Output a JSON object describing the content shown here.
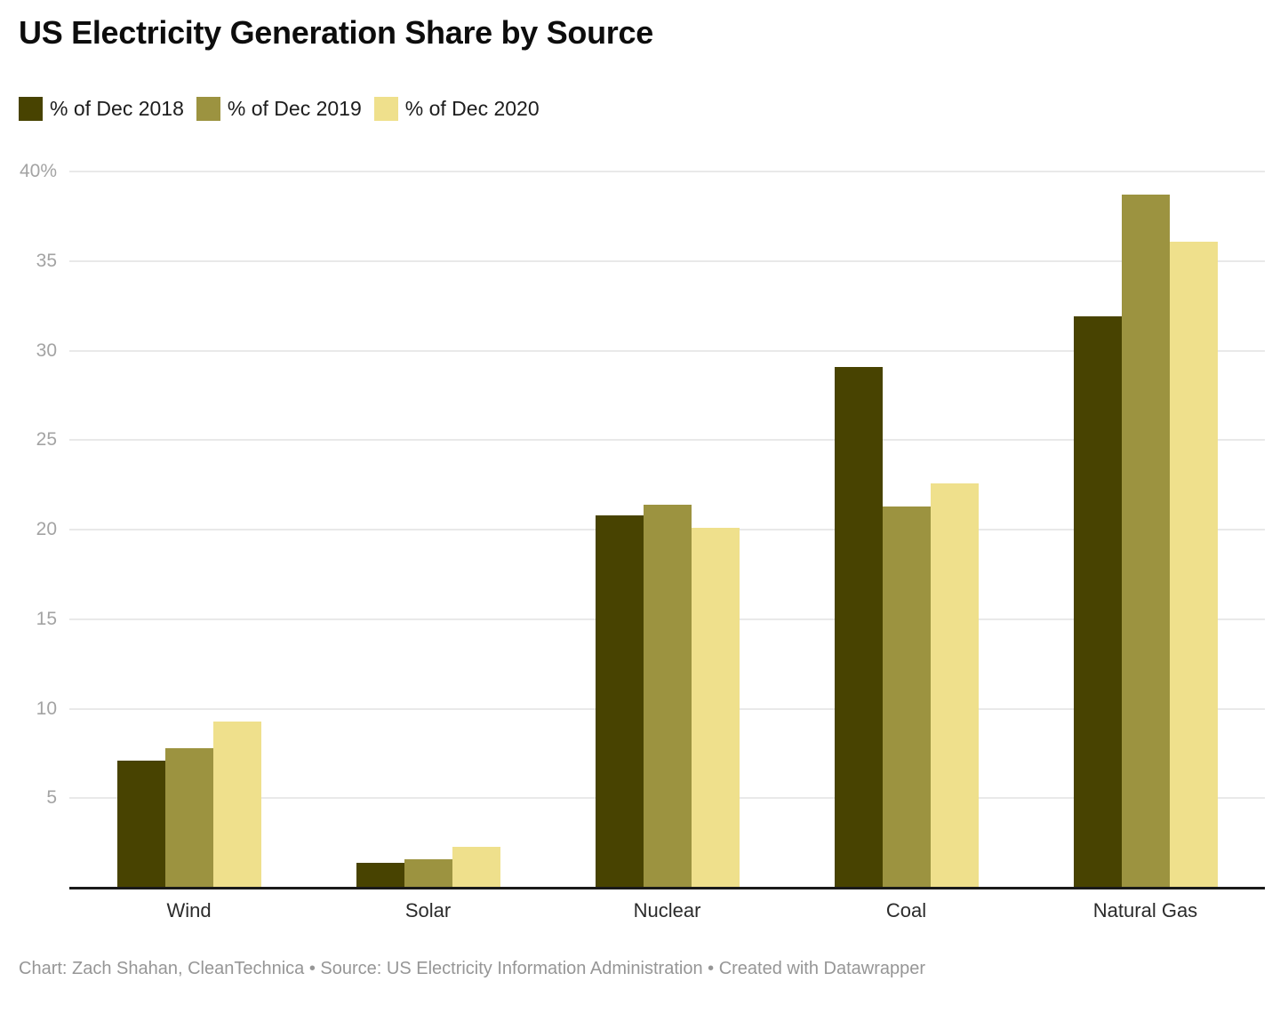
{
  "chart_data": {
    "type": "bar",
    "title": "US Electricity Generation Share by Source",
    "xlabel": "",
    "ylabel": "",
    "categories": [
      "Wind",
      "Solar",
      "Nuclear",
      "Coal",
      "Natural Gas"
    ],
    "series": [
      {
        "name": "% of Dec 2018",
        "color": "#484301",
        "values": [
          7.1,
          1.4,
          20.8,
          29.1,
          31.9
        ]
      },
      {
        "name": "% of Dec 2019",
        "color": "#9c9340",
        "values": [
          7.8,
          1.6,
          21.4,
          21.3,
          38.7
        ]
      },
      {
        "name": "% of Dec 2020",
        "color": "#efe08c",
        "values": [
          9.3,
          2.3,
          20.1,
          22.6,
          36.1
        ]
      }
    ],
    "ylim": [
      0,
      40
    ],
    "yticks": [
      5,
      10,
      15,
      20,
      25,
      30,
      35,
      40
    ],
    "ytick_labels": [
      "5",
      "10",
      "15",
      "20",
      "25",
      "30",
      "35",
      "40%"
    ],
    "grid": true,
    "legend_position": "top",
    "colors": {
      "gridline": "#e9e9e9",
      "axis_line": "#1a1a1a",
      "tick_label": "#a3a3a3",
      "category_label": "#2b2b2b"
    }
  },
  "footer": {
    "credit": "Chart: Zach Shahan, CleanTechnica • Source: US Electricity Information Administration • Created with Datawrapper"
  }
}
